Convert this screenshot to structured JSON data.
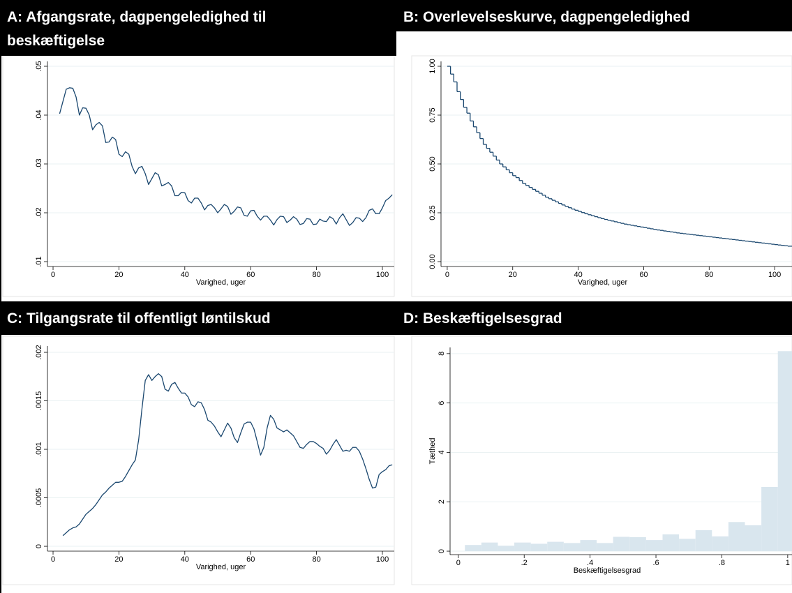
{
  "chart_data": [
    {
      "type": "line",
      "title": "A: Afgangsrate, dagpengeledighed til beskæftigelse",
      "xlabel": "Varighed, uger",
      "color": "#1a476f",
      "grid": true,
      "x": [
        2,
        3,
        4,
        5,
        6,
        7,
        8,
        9,
        10,
        11,
        12,
        13,
        14,
        15,
        16,
        17,
        18,
        19,
        20,
        21,
        22,
        23,
        24,
        25,
        26,
        27,
        28,
        29,
        30,
        31,
        32,
        33,
        34,
        35,
        36,
        37,
        38,
        39,
        40,
        41,
        42,
        43,
        44,
        45,
        46,
        47,
        48,
        49,
        50,
        51,
        52,
        53,
        54,
        55,
        56,
        57,
        58,
        59,
        60,
        61,
        62,
        63,
        64,
        65,
        66,
        67,
        68,
        69,
        70,
        71,
        72,
        73,
        74,
        75,
        76,
        77,
        78,
        79,
        80,
        81,
        82,
        83,
        84,
        85,
        86,
        87,
        88,
        89,
        90,
        91,
        92,
        93,
        94,
        95,
        96,
        97,
        98,
        99,
        100,
        101,
        102,
        103
      ],
      "values": [
        0.0403,
        0.0428,
        0.0453,
        0.0456,
        0.0455,
        0.0437,
        0.04,
        0.0415,
        0.0414,
        0.04,
        0.037,
        0.038,
        0.0385,
        0.0378,
        0.0344,
        0.0345,
        0.0355,
        0.035,
        0.032,
        0.0315,
        0.0325,
        0.032,
        0.0295,
        0.028,
        0.0292,
        0.0295,
        0.028,
        0.0258,
        0.027,
        0.0282,
        0.0278,
        0.0255,
        0.0258,
        0.0262,
        0.0255,
        0.0235,
        0.0235,
        0.0242,
        0.0241,
        0.0225,
        0.022,
        0.023,
        0.023,
        0.022,
        0.0206,
        0.0215,
        0.0217,
        0.021,
        0.02,
        0.0208,
        0.0217,
        0.0213,
        0.0197,
        0.0203,
        0.0212,
        0.021,
        0.0195,
        0.0193,
        0.0204,
        0.0205,
        0.0193,
        0.0185,
        0.0193,
        0.0193,
        0.0185,
        0.0175,
        0.0186,
        0.0193,
        0.0192,
        0.018,
        0.0185,
        0.0192,
        0.0187,
        0.0176,
        0.0178,
        0.0188,
        0.0187,
        0.0176,
        0.0177,
        0.0187,
        0.0183,
        0.0182,
        0.0192,
        0.0188,
        0.0177,
        0.019,
        0.0198,
        0.0186,
        0.0174,
        0.018,
        0.019,
        0.0189,
        0.0182,
        0.019,
        0.0205,
        0.0208,
        0.0198,
        0.0198,
        0.021,
        0.0225,
        0.023,
        0.0237
      ],
      "xlim": [
        -1.7,
        103.6
      ],
      "xticks": [
        0,
        20,
        40,
        60,
        80,
        100
      ],
      "ylim": [
        0.009,
        0.051
      ],
      "yticks": [
        {
          "value": 0.01,
          "label": ".01"
        },
        {
          "value": 0.02,
          "label": ".02"
        },
        {
          "value": 0.03,
          "label": ".03"
        },
        {
          "value": 0.04,
          "label": ".04"
        },
        {
          "value": 0.05,
          "label": ".05"
        }
      ]
    },
    {
      "type": "step",
      "title": "B: Overlevelseskurve, dagpengeledighed",
      "xlabel": "Varighed, uger",
      "color": "#1a476f",
      "grid": true,
      "x": [
        0,
        1,
        2,
        3,
        4,
        5,
        6,
        7,
        8,
        9,
        10,
        11,
        12,
        13,
        14,
        15,
        16,
        17,
        18,
        19,
        20,
        21,
        22,
        23,
        24,
        25,
        26,
        27,
        28,
        29,
        30,
        31,
        32,
        33,
        34,
        35,
        36,
        37,
        38,
        39,
        40,
        41,
        42,
        43,
        44,
        45,
        46,
        47,
        48,
        49,
        50,
        51,
        52,
        53,
        54,
        55,
        56,
        57,
        58,
        59,
        60,
        61,
        62,
        63,
        64,
        65,
        66,
        67,
        68,
        69,
        70,
        71,
        72,
        73,
        74,
        75,
        76,
        77,
        78,
        79,
        80,
        81,
        82,
        83,
        84,
        85,
        86,
        87,
        88,
        89,
        90,
        91,
        92,
        93,
        94,
        95,
        96,
        97,
        98,
        99,
        100,
        101,
        102,
        103,
        104
      ],
      "values": [
        1.0,
        0.96,
        0.92,
        0.87,
        0.83,
        0.79,
        0.76,
        0.72,
        0.69,
        0.66,
        0.63,
        0.6,
        0.58,
        0.56,
        0.54,
        0.52,
        0.5,
        0.485,
        0.47,
        0.455,
        0.44,
        0.43,
        0.415,
        0.4,
        0.39,
        0.38,
        0.37,
        0.36,
        0.35,
        0.34,
        0.33,
        0.322,
        0.314,
        0.306,
        0.298,
        0.29,
        0.283,
        0.276,
        0.269,
        0.263,
        0.257,
        0.251,
        0.245,
        0.24,
        0.235,
        0.23,
        0.225,
        0.22,
        0.216,
        0.212,
        0.208,
        0.204,
        0.2,
        0.196,
        0.192,
        0.189,
        0.186,
        0.183,
        0.18,
        0.177,
        0.174,
        0.171,
        0.168,
        0.165,
        0.162,
        0.16,
        0.157,
        0.155,
        0.152,
        0.15,
        0.147,
        0.145,
        0.143,
        0.141,
        0.139,
        0.137,
        0.135,
        0.133,
        0.131,
        0.129,
        0.127,
        0.125,
        0.123,
        0.121,
        0.119,
        0.117,
        0.115,
        0.113,
        0.111,
        0.109,
        0.107,
        0.105,
        0.103,
        0.101,
        0.099,
        0.097,
        0.095,
        0.093,
        0.091,
        0.089,
        0.087,
        0.085,
        0.083,
        0.081,
        0.079
      ],
      "xlim": [
        -1.9,
        105.3
      ],
      "xticks": [
        0,
        20,
        40,
        60,
        80,
        100
      ],
      "ylim": [
        -0.025,
        1.025
      ],
      "yticks": [
        {
          "value": 0,
          "label": "0.00"
        },
        {
          "value": 0.25,
          "label": "0.25"
        },
        {
          "value": 0.5,
          "label": "0.50"
        },
        {
          "value": 0.75,
          "label": "0.75"
        },
        {
          "value": 1,
          "label": "1.00"
        }
      ]
    },
    {
      "type": "line",
      "title": "C: Tilgangsrate til offentligt løntilskud",
      "xlabel": "Varighed, uger",
      "color": "#1a476f",
      "grid": true,
      "x": [
        3,
        4,
        5,
        6,
        7,
        8,
        9,
        10,
        11,
        12,
        13,
        14,
        15,
        16,
        17,
        18,
        19,
        20,
        21,
        22,
        23,
        24,
        25,
        26,
        27,
        28,
        29,
        30,
        31,
        32,
        33,
        34,
        35,
        36,
        37,
        38,
        39,
        40,
        41,
        42,
        43,
        44,
        45,
        46,
        47,
        48,
        49,
        50,
        51,
        52,
        53,
        54,
        55,
        56,
        57,
        58,
        59,
        60,
        61,
        62,
        63,
        64,
        65,
        66,
        67,
        68,
        69,
        70,
        71,
        72,
        73,
        74,
        75,
        76,
        77,
        78,
        79,
        80,
        81,
        82,
        83,
        84,
        85,
        86,
        87,
        88,
        89,
        90,
        91,
        92,
        93,
        94,
        95,
        96,
        97,
        98,
        99,
        100,
        101,
        102,
        103
      ],
      "values": [
        0.00011,
        0.00014,
        0.00017,
        0.00019,
        0.0002,
        0.00023,
        0.00028,
        0.00033,
        0.00036,
        0.00039,
        0.00043,
        0.00048,
        0.00053,
        0.00056,
        0.0006,
        0.00063,
        0.00066,
        0.00066,
        0.00067,
        0.00072,
        0.00078,
        0.00084,
        0.00089,
        0.0011,
        0.00142,
        0.00171,
        0.00177,
        0.00171,
        0.00175,
        0.00178,
        0.00175,
        0.00162,
        0.0016,
        0.00167,
        0.00169,
        0.00163,
        0.00158,
        0.00158,
        0.00154,
        0.00146,
        0.00144,
        0.00149,
        0.00148,
        0.00141,
        0.0013,
        0.00128,
        0.00124,
        0.00118,
        0.00113,
        0.0012,
        0.00127,
        0.00122,
        0.00112,
        0.00107,
        0.00117,
        0.00126,
        0.00128,
        0.00128,
        0.00121,
        0.00108,
        0.00094,
        0.00102,
        0.00122,
        0.00135,
        0.00131,
        0.00122,
        0.0012,
        0.00118,
        0.0012,
        0.00117,
        0.00114,
        0.00108,
        0.00102,
        0.00101,
        0.00105,
        0.00108,
        0.00108,
        0.00106,
        0.00103,
        0.00101,
        0.00095,
        0.00099,
        0.00105,
        0.0011,
        0.00104,
        0.00098,
        0.00099,
        0.00098,
        0.00102,
        0.00102,
        0.00098,
        0.0009,
        0.0008,
        0.00069,
        0.0006,
        0.00061,
        0.00074,
        0.00077,
        0.00079,
        0.00083,
        0.00084
      ],
      "xlim": [
        -1.7,
        103.6
      ],
      "xticks": [
        0,
        20,
        40,
        60,
        80,
        100
      ],
      "ylim": [
        -5e-05,
        0.002065
      ],
      "yticks": [
        0,
        {
          "value": 0.0005,
          "label": ".0005"
        },
        {
          "value": 0.001,
          "label": ".001"
        },
        {
          "value": 0.0015,
          "label": ".0015"
        },
        {
          "value": 0.002,
          "label": ".002"
        }
      ]
    },
    {
      "type": "histogram",
      "title": "D: Beskæftigelsesgrad",
      "xlabel": "Beskæftigelsesgrad",
      "ylabel": "Tæthed",
      "color": "#d9e6ee",
      "grid": true,
      "bins": [
        0.02,
        0.07,
        0.12,
        0.17,
        0.22,
        0.27,
        0.32,
        0.37,
        0.42,
        0.47,
        0.52,
        0.57,
        0.62,
        0.67,
        0.72,
        0.77,
        0.82,
        0.87,
        0.92,
        0.97,
        1.02
      ],
      "values": [
        0.25,
        0.35,
        0.22,
        0.35,
        0.3,
        0.38,
        0.33,
        0.45,
        0.33,
        0.58,
        0.57,
        0.45,
        0.68,
        0.5,
        0.85,
        0.6,
        1.18,
        1.05,
        2.6,
        8.1
      ],
      "xlim": [
        -0.025,
        1.013
      ],
      "xticks": [
        0,
        {
          "value": 0.2,
          "label": ".2"
        },
        {
          "value": 0.4,
          "label": ".4"
        },
        {
          "value": 0.6,
          "label": ".6"
        },
        {
          "value": 0.8,
          "label": ".8"
        },
        1
      ],
      "ylim": [
        -0.14,
        8.25
      ],
      "yticks": [
        0,
        2,
        4,
        6,
        8
      ]
    }
  ]
}
